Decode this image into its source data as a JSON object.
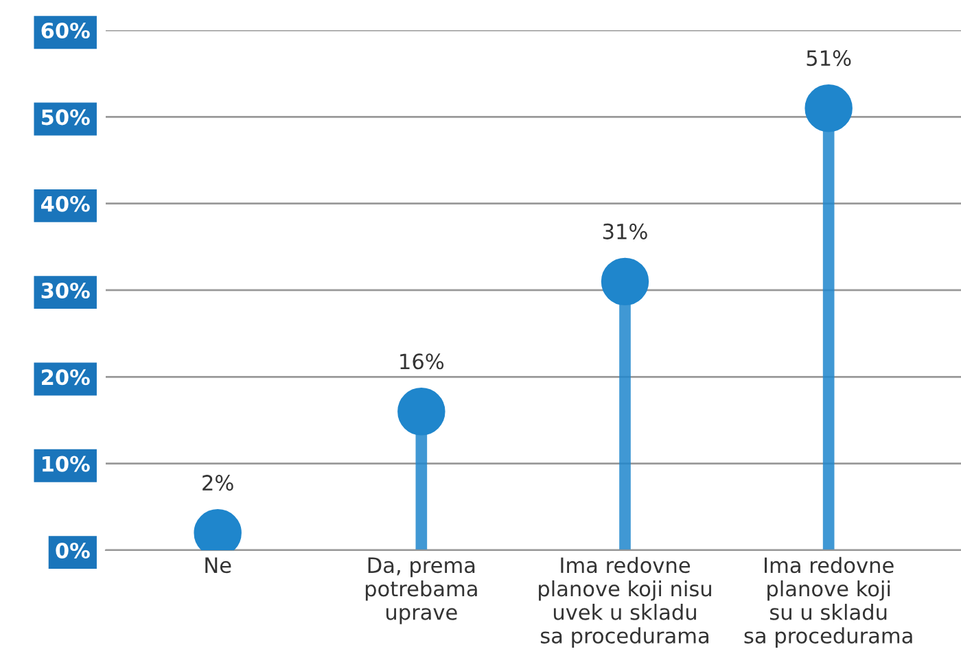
{
  "chart_data": {
    "type": "lollipop",
    "categories": [
      "Ne",
      "Da, prema\npotrebama\nuprave",
      "Ima redovne\nplanove koji nisu\nuvek u skladu\nsa procedurama",
      "Ima redovne\nplanove koji\nsu u skladu\nsa procedurama"
    ],
    "series": [
      {
        "color": "#1f86cc",
        "values": [
          2,
          16,
          31,
          51
        ],
        "value_labels": [
          "2%",
          "16%",
          "31%",
          "51%"
        ]
      }
    ],
    "ylim": [
      0,
      60
    ],
    "yticks": [
      {
        "value": 0,
        "label": "0%"
      },
      {
        "value": 10,
        "label": "10%"
      },
      {
        "value": 20,
        "label": "20%"
      },
      {
        "value": 30,
        "label": "30%"
      },
      {
        "value": 40,
        "label": "40%"
      },
      {
        "value": 50,
        "label": "50%"
      },
      {
        "value": 60,
        "label": "60%"
      }
    ],
    "grid": "y",
    "marker": "circle"
  }
}
